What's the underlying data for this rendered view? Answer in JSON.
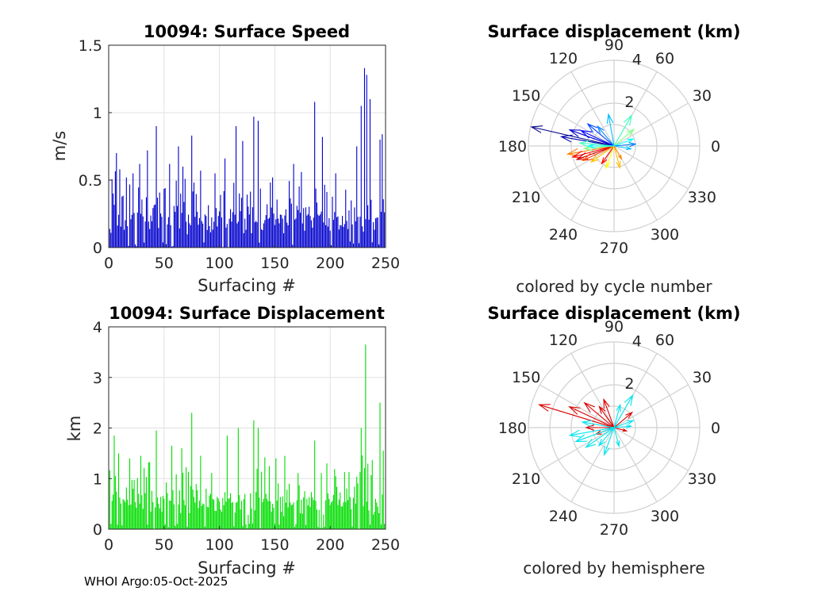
{
  "footer": "WHOI Argo:05-Oct-2025",
  "chart_data": [
    {
      "type": "bar",
      "title": "10094: Surface Speed",
      "xlabel": "Surfacing #",
      "ylabel": "m/s",
      "xlim": [
        0,
        250
      ],
      "ylim": [
        0,
        1.5
      ],
      "xticks": [
        "0",
        "50",
        "100",
        "150",
        "200",
        "250"
      ],
      "yticks": [
        "0",
        "0.5",
        "1",
        "1.5"
      ],
      "grid": true,
      "color": "#0000cc",
      "n": 249,
      "highlights": [
        {
          "x": 4,
          "value": 0.4
        },
        {
          "x": 7,
          "value": 0.7
        },
        {
          "x": 10,
          "value": 0.58
        },
        {
          "x": 16,
          "value": 0.52
        },
        {
          "x": 22,
          "value": 0.55
        },
        {
          "x": 28,
          "value": 0.62
        },
        {
          "x": 35,
          "value": 0.72
        },
        {
          "x": 43,
          "value": 0.9
        },
        {
          "x": 55,
          "value": 0.62
        },
        {
          "x": 63,
          "value": 0.75
        },
        {
          "x": 67,
          "value": 0.6
        },
        {
          "x": 75,
          "value": 0.83
        },
        {
          "x": 83,
          "value": 0.57
        },
        {
          "x": 96,
          "value": 0.55
        },
        {
          "x": 105,
          "value": 0.66
        },
        {
          "x": 115,
          "value": 0.9
        },
        {
          "x": 121,
          "value": 0.79
        },
        {
          "x": 131,
          "value": 0.97
        },
        {
          "x": 135,
          "value": 0.94
        },
        {
          "x": 148,
          "value": 0.52
        },
        {
          "x": 167,
          "value": 0.62
        },
        {
          "x": 174,
          "value": 0.56
        },
        {
          "x": 186,
          "value": 1.08
        },
        {
          "x": 193,
          "value": 0.82
        },
        {
          "x": 205,
          "value": 0.55
        },
        {
          "x": 224,
          "value": 0.75
        },
        {
          "x": 228,
          "value": 1.05
        },
        {
          "x": 231,
          "value": 1.33
        },
        {
          "x": 233,
          "value": 1.28
        },
        {
          "x": 236,
          "value": 1.1
        },
        {
          "x": 245,
          "value": 0.8
        },
        {
          "x": 247,
          "value": 0.84
        }
      ]
    },
    {
      "type": "bar",
      "title": "10094: Surface Displacement",
      "xlabel": "Surfacing #",
      "ylabel": "km",
      "xlim": [
        0,
        250
      ],
      "ylim": [
        0,
        4
      ],
      "xticks": [
        "0",
        "50",
        "100",
        "150",
        "200",
        "250"
      ],
      "yticks": [
        "0",
        "1",
        "2",
        "3",
        "4"
      ],
      "grid": true,
      "color": "#00dd00",
      "n": 249,
      "highlights": [
        {
          "x": 5,
          "value": 1.85
        },
        {
          "x": 9,
          "value": 1.5
        },
        {
          "x": 19,
          "value": 1.4
        },
        {
          "x": 29,
          "value": 1.45
        },
        {
          "x": 43,
          "value": 1.95
        },
        {
          "x": 57,
          "value": 1.65
        },
        {
          "x": 66,
          "value": 1.6
        },
        {
          "x": 75,
          "value": 2.3
        },
        {
          "x": 83,
          "value": 1.45
        },
        {
          "x": 107,
          "value": 1.85
        },
        {
          "x": 117,
          "value": 2.0
        },
        {
          "x": 131,
          "value": 2.15
        },
        {
          "x": 135,
          "value": 2.0
        },
        {
          "x": 151,
          "value": 1.4
        },
        {
          "x": 186,
          "value": 1.75
        },
        {
          "x": 197,
          "value": 1.3
        },
        {
          "x": 228,
          "value": 2.0
        },
        {
          "x": 232,
          "value": 3.65
        },
        {
          "x": 245,
          "value": 2.5
        },
        {
          "x": 248,
          "value": 1.55
        }
      ]
    },
    {
      "type": "polar-compass",
      "title": "Surface displacement (km)",
      "caption": "colored by cycle number",
      "rlim": [
        0,
        4
      ],
      "rticks": [
        "2",
        "4"
      ],
      "angle_labels": [
        "0",
        "30",
        "60",
        "90",
        "120",
        "150",
        "180",
        "210",
        "240",
        "270",
        "300",
        "330"
      ],
      "colormap": "jet",
      "vectors": [
        {
          "theta": 167,
          "r": 3.95,
          "color": "#00008b"
        },
        {
          "theta": 160,
          "r": 2.2,
          "color": "#0000cc"
        },
        {
          "theta": 155,
          "r": 1.7,
          "color": "#0000ff"
        },
        {
          "theta": 170,
          "r": 2.5,
          "color": "#0000aa"
        },
        {
          "theta": 140,
          "r": 1.6,
          "color": "#0040ff"
        },
        {
          "theta": 130,
          "r": 1.2,
          "color": "#0080ff"
        },
        {
          "theta": 100,
          "r": 1.5,
          "color": "#00bfff"
        },
        {
          "theta": 60,
          "r": 1.65,
          "color": "#40ffbf"
        },
        {
          "theta": 40,
          "r": 1.2,
          "color": "#80ff80"
        },
        {
          "theta": 20,
          "r": 0.95,
          "color": "#00ffff"
        },
        {
          "theta": 5,
          "r": 1.0,
          "color": "#0080ff"
        },
        {
          "theta": 350,
          "r": 0.8,
          "color": "#00c0ff"
        },
        {
          "theta": 190,
          "r": 2.2,
          "color": "#ff8000"
        },
        {
          "theta": 195,
          "r": 2.0,
          "color": "#ff0000"
        },
        {
          "theta": 200,
          "r": 1.85,
          "color": "#cc0000"
        },
        {
          "theta": 205,
          "r": 1.6,
          "color": "#ff4000"
        },
        {
          "theta": 215,
          "r": 1.3,
          "color": "#ffbf00"
        },
        {
          "theta": 235,
          "r": 1.0,
          "color": "#ff0000"
        },
        {
          "theta": 250,
          "r": 1.1,
          "color": "#ffff00"
        },
        {
          "theta": 285,
          "r": 1.05,
          "color": "#ffbf00"
        },
        {
          "theta": 300,
          "r": 0.7,
          "color": "#ff8000"
        },
        {
          "theta": 185,
          "r": 1.4,
          "color": "#80ff80"
        },
        {
          "theta": 175,
          "r": 1.6,
          "color": "#40ffbf"
        },
        {
          "theta": 180,
          "r": 1.2,
          "color": "#00ffff"
        }
      ]
    },
    {
      "type": "polar-compass",
      "title": "Surface displacement (km)",
      "caption": "colored by hemisphere",
      "rlim": [
        0,
        4
      ],
      "rticks": [
        "2",
        "4"
      ],
      "angle_labels": [
        "0",
        "30",
        "60",
        "90",
        "120",
        "150",
        "180",
        "210",
        "240",
        "270",
        "300",
        "330"
      ],
      "vectors": [
        {
          "theta": 163,
          "r": 3.65,
          "color": "#dd0000"
        },
        {
          "theta": 155,
          "r": 2.3,
          "color": "#dd0000"
        },
        {
          "theta": 140,
          "r": 1.8,
          "color": "#dd0000"
        },
        {
          "theta": 125,
          "r": 1.2,
          "color": "#dd0000"
        },
        {
          "theta": 110,
          "r": 1.4,
          "color": "#dd0000"
        },
        {
          "theta": 40,
          "r": 1.1,
          "color": "#dd0000"
        },
        {
          "theta": 180,
          "r": 1.3,
          "color": "#dd0000"
        },
        {
          "theta": 200,
          "r": 0.9,
          "color": "#dd0000"
        },
        {
          "theta": 345,
          "r": 0.6,
          "color": "#dd0000"
        },
        {
          "theta": 60,
          "r": 1.75,
          "color": "#00e5ee"
        },
        {
          "theta": 75,
          "r": 1.1,
          "color": "#00e5ee"
        },
        {
          "theta": 190,
          "r": 2.1,
          "color": "#00e5ee"
        },
        {
          "theta": 200,
          "r": 1.9,
          "color": "#00e5ee"
        },
        {
          "theta": 215,
          "r": 1.6,
          "color": "#00e5ee"
        },
        {
          "theta": 230,
          "r": 1.1,
          "color": "#00e5ee"
        },
        {
          "theta": 250,
          "r": 1.35,
          "color": "#00e5ee"
        },
        {
          "theta": 285,
          "r": 0.9,
          "color": "#00e5ee"
        },
        {
          "theta": 20,
          "r": 0.95,
          "color": "#00e5ee"
        },
        {
          "theta": 5,
          "r": 0.8,
          "color": "#00e5ee"
        },
        {
          "theta": 170,
          "r": 1.5,
          "color": "#00e5ee"
        }
      ]
    }
  ]
}
